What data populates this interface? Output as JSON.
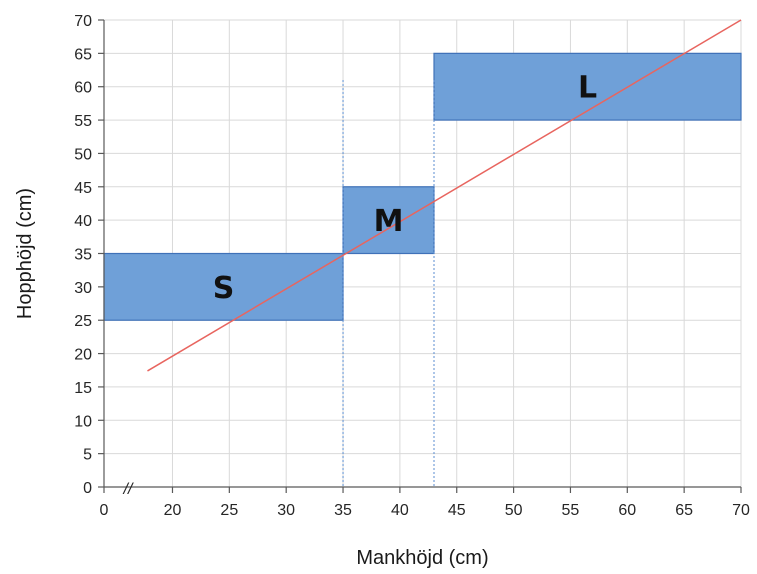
{
  "chart_data": {
    "type": "area",
    "xlabel": "Mankhöjd (cm)",
    "ylabel": "Hopphöjd (cm)",
    "x_ticks": [
      "0",
      "20",
      "25",
      "30",
      "35",
      "40",
      "45",
      "50",
      "55",
      "60",
      "65",
      "70"
    ],
    "y_ticks": [
      "0",
      "5",
      "10",
      "15",
      "20",
      "25",
      "30",
      "35",
      "40",
      "45",
      "50",
      "55",
      "60",
      "65",
      "70"
    ],
    "x_axis_break": "//",
    "xlim": [
      16,
      70
    ],
    "ylim": [
      0,
      70
    ],
    "grid": true,
    "boxes": [
      {
        "label": "S",
        "x": [
          16,
          35
        ],
        "y": [
          25,
          35
        ]
      },
      {
        "label": "M",
        "x": [
          35,
          43
        ],
        "y": [
          35,
          45
        ]
      },
      {
        "label": "L",
        "x": [
          43,
          70
        ],
        "y": [
          55,
          65
        ]
      }
    ],
    "dividers_x": [
      35,
      43
    ],
    "trend_line": {
      "x": [
        17.8,
        70
      ],
      "y": [
        17.4,
        70
      ]
    },
    "colors": {
      "box_fill": "#6fa0d8",
      "box_stroke": "#3f71b8",
      "trend_line": "#e8655f",
      "divider": "#5b8ed1",
      "grid": "#d9d9d9",
      "axis": "#595959"
    }
  }
}
